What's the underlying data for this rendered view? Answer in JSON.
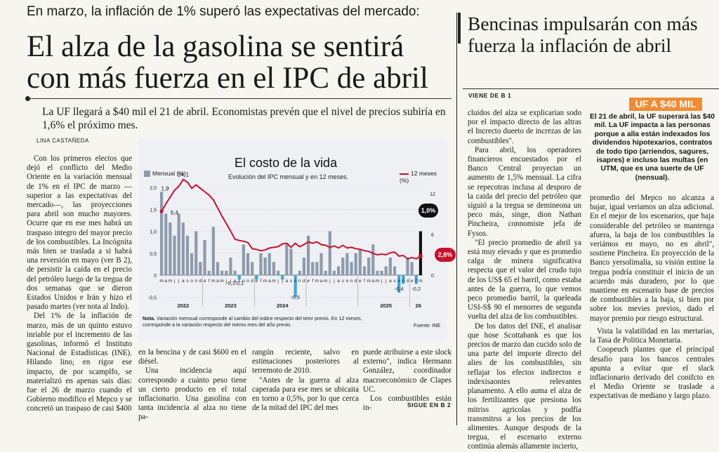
{
  "kicker": "En marzo, la inflación de 1% superó las expectativas del mercado:",
  "headline": "El alza de la gasolina se sentirá con más fuerza en el IPC de abril",
  "subhead": "La UF llegará a $40 mil el 21 de abril. Economistas prevén que el nivel de precios subiría en 1,6% el próximo mes.",
  "byline": "LINA CASTAÑEDA",
  "col1": [
    "Con los primeros electos que dejó el conflicto del Medio Oriente en la variación mensual de 1% en el IPC de marzo —superior a las expectativas del mercado—, las proyecciones para abril son mucho mayores. Ocurre que en ese mes habrá un traspaso integro del mayor precio de los combustibles. La Incógnita más bien se traslada a si habrá una reversión en mayo (ver B 2), de persistir la caída en el precio del petróleo luego de la tregua de dos semanas que se dieron Estados Unidos e Irán y hizo el pasado martes (ver nota al Indo).",
    "Del 1% de la inflación de marzo, más de un quinto estuvo inriable por el incremento de las gasolinas, informó el Instituto Nacional de Estadísticas (INE). Hilando lino, en rigor ese impacto, de por scamplfo, se materializó en apenas sais días: fue el 26 de marzo cuando el Gobierno modifico el Mepco y se concretó un traspaso de casi $400"
  ],
  "col2": [
    "en la bencina y de casi $600 en el diésel.",
    "Una incidencia aquí correspondo a cuánto peso tiene un cierto producto en el total inflacionario. Una gasolina con tanta incidencia al alza no tiene pa-"
  ],
  "col3": [
    "rangún reciente, salvo en estimaciones posteriores al terremoto de 2010.",
    "\"Antes de la guerra al alza caperada para ese mes se ubicaita en torno a 0,5%, por lo que cerca de la mitad del IPC del mes"
  ],
  "col4": [
    "puede atribuirse a este slock externo\", indica Hermann González, coordinador macroeconómico de Clapes UC.",
    "Los combustibles están in-"
  ],
  "sigue": "SIGUE EN B 2",
  "right_title": "Bencinas impulsarán con más fuerza la inflación de abril",
  "viene": "VIENE DE B 1",
  "col5": [
    "cluidos del alza se explicarian sodo por el impacto directo de las altras el Increcto dueeto de increzas de las combustibles\".",
    "Para abril, los operadores financieros encuestados por el Banco Central proyectan un aumento de 1,5% mensual. La cifra se repecotras inclusa al desporo de la caida del precio del petróleo que siguió a la tregua se demineona un peco más, singe, dion Nathan Pincheira, connomiste jefa de Fysos.",
    "\"El precio promedio de abril ya está muy elevado y que es promedio calga de minera significativa respecta que el valor del crudo tujo de los US$ 65 el barril, como estaba antes de la guerra, lo que vemos peco promedio barril, la queleada USI-S$ 90 el menorres de segunda vuelta del alza de los combustibles.",
    "De los datos del INE, el analisar que hose Scottabank es que los precios de marzo dan cucido solo de una parte del importe directo del alies de los combustibles, sin reflajar los efectos indirectos e indexisaontes relevantes planamento. A ello auma el alza de los fertilizantes que presiona los mitriss agricolas y podfía transmitrss a los precios de los alimentes. Aunque despods de la tregua, el escenario externo continúa alemás allamente incierto,"
  ],
  "uf_box": {
    "title": "UF A $40 MIL",
    "body": "El 21 de abril, la UF superará las $40 mil. La UF impacta a las personas porque a alla están indexados los dividendos hipotexarios, contratos de todo tipo (arriendos, sagures, isapres) e incluso las multas (en UTM, que es una suerte de UF (nensual)."
  },
  "col6": [
    "promedio del Mepco no alcanza a bajar, igual veriamos un alza adicional. En el mejor de los escenarios, que haja considerable del petróleo se mantenga afuera, la baja de los combustibles la veriámos en mayo, no en abril\", sostiene Pincheira. En proyección de la Banco yersolimalia, su visión entine la tregua podría constituir el inicio de un acuerdo más duradero, por lo que mantiene en escenario base de precios de combustibles a la baja, si bien por sobre los mevies previos, dado el mayor premio por riesgo estructural."
  ],
  "col7": [
    "Vista la valatilidad en las mertarías, la Tasa de Politica Monetaria.",
    "Coopeuch plantes que el principal desafio para los bancos centrales apunta a evitar que el slack inflacionario derivado del conifcto en el Medio Oriente se traslade a expectativas de mediano y largo plazo."
  ],
  "chart_data": {
    "type": "bar",
    "title": "El costo de la vida",
    "subtitle": "Evolución del IPC mensual y en 12 meses.",
    "legend_left": "Mensual (%)",
    "legend_right": "12 meses (%)",
    "categories": [
      "m",
      "a",
      "m",
      "j",
      "j",
      "a",
      "s",
      "o",
      "n",
      "d",
      "e",
      "f",
      "m",
      "a",
      "m",
      "j",
      "j",
      "a",
      "s",
      "o",
      "n",
      "d",
      "e",
      "f",
      "m",
      "a",
      "m",
      "j",
      "j",
      "a",
      "s",
      "o",
      "n",
      "d",
      "e",
      "f",
      "m",
      "a",
      "m",
      "j",
      "j",
      "a",
      "s",
      "o",
      "n",
      "d",
      "e",
      "f",
      "m",
      "a",
      "m",
      "j",
      "j",
      "a",
      "s",
      "o",
      "n",
      "d",
      "e",
      "f",
      "m"
    ],
    "year_labels": [
      "2022",
      "2023",
      "2024",
      "2025",
      "26"
    ],
    "series": [
      {
        "name": "Mensual (%)",
        "values": [
          1.9,
          1.4,
          1.2,
          0.9,
          1.4,
          1.2,
          0.9,
          0.5,
          1.0,
          0.3,
          0.8,
          0.1,
          1.1,
          0.3,
          0.1,
          0.1,
          0.4,
          0.1,
          -0.1,
          0.7,
          0.5,
          0.3,
          -0.1,
          0.5,
          0.4,
          0.5,
          0.3,
          0.1,
          -0.1,
          0.7,
          0.6,
          -0.5,
          0.1,
          0.4,
          0.9,
          0.3,
          0.3,
          0.5,
          0.1,
          1.0,
          0.1,
          0.2,
          0.4,
          0.5,
          0.3,
          0.5,
          0.6,
          0.2,
          0.4,
          0.7,
          0.1,
          0.1,
          0.2,
          0.4,
          0.2,
          -0.4,
          -0.2,
          0.4,
          0.3,
          -0.2,
          1.0
        ]
      },
      {
        "name": "12 meses (%)",
        "values": [
          9.4,
          10.5,
          11.5,
          12.5,
          13.1,
          14.1,
          13.7,
          12.8,
          13.3,
          12.8,
          12.3,
          11.8,
          11.1,
          9.9,
          8.7,
          7.6,
          6.5,
          5.3,
          5.1,
          5.0,
          4.8,
          3.9,
          3.8,
          3.6,
          3.7,
          4.0,
          4.1,
          4.2,
          4.6,
          4.7,
          4.1,
          4.7,
          4.2,
          4.5,
          4.9,
          4.7,
          4.9,
          4.5,
          4.4,
          4.1,
          4.3,
          4.0,
          4.4,
          4.0,
          4.1,
          3.9,
          3.8,
          3.6,
          3.5,
          3.2,
          3.0,
          3.1,
          3.0,
          3.3,
          3.4,
          2.8,
          2.9,
          2.4,
          2.6,
          2.4,
          2.8
        ]
      }
    ],
    "value_labels": [
      "1,9",
      "9,4",
      "14,1",
      "-0,1",
      "-0,1",
      "-0,5",
      "-0,4",
      "-0,2",
      "1,0%",
      "2,8%"
    ],
    "y_left_ticks": [
      "2,0",
      "1,5",
      "1,0",
      "0,5",
      "0",
      "-0,5"
    ],
    "y_right_ticks": [
      "12",
      "6",
      "0"
    ],
    "ylim_left": [
      -0.5,
      2.0
    ],
    "ylim_right": [
      0,
      15
    ],
    "note_label": "Nota.",
    "note": "Variación mensual corresponde al cambio del indice respecto del temr previo. En 12 meses, corresponde a la variación respecto del mirmo mes del año previo.",
    "source": "Fuente: INE",
    "colors": {
      "bar": "#8d9bab",
      "bar_negative": "#3fa7dd",
      "bar_last": "#111111",
      "line": "#c8102e"
    }
  }
}
